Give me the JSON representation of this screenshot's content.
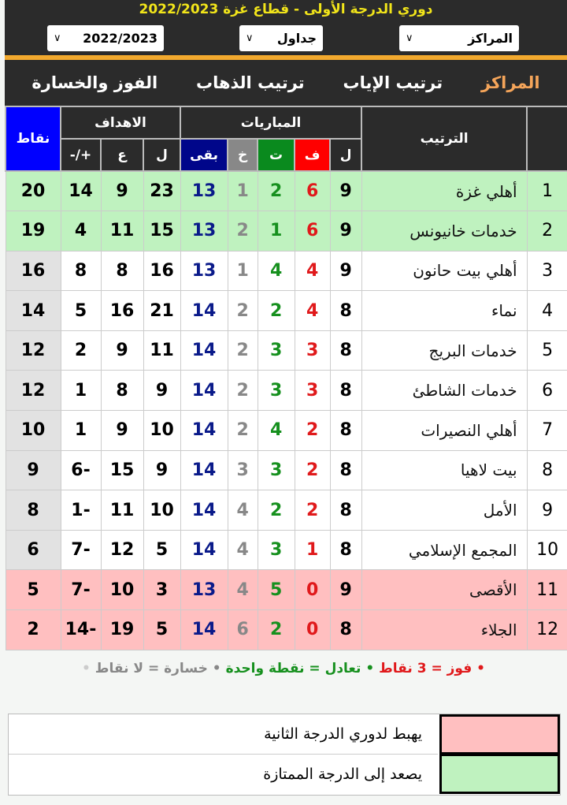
{
  "header": {
    "title": "دوري الدرجة الأولى - قطاع غزة 2022/2023",
    "selects": {
      "season": "2022/2023",
      "type": "جداول",
      "view": "المراكز"
    }
  },
  "tabs": [
    {
      "label": "المراكز",
      "active": true
    },
    {
      "label": "ترتيب الإياب"
    },
    {
      "label": "ترتيب الذهاب"
    },
    {
      "label": "الفوز والخسارة"
    }
  ],
  "table": {
    "headers": {
      "rank": "الترتيب",
      "matches": "المباريات",
      "goals": "الاهداف",
      "points": "نقاط",
      "played": "ل",
      "won": "ف",
      "drawn": "ت",
      "lost": "خ",
      "remaining": "بقى",
      "gf": "ل",
      "ga": "ع",
      "gd": "+/-"
    },
    "rows": [
      {
        "pos": "1",
        "team": "أهلي غزة",
        "p": "9",
        "w": "6",
        "d": "2",
        "l": "1",
        "r": "13",
        "gf": "23",
        "ga": "9",
        "gd": "14",
        "pts": "20",
        "zone": "up"
      },
      {
        "pos": "2",
        "team": "خدمات خانيونس",
        "p": "9",
        "w": "6",
        "d": "1",
        "l": "2",
        "r": "13",
        "gf": "15",
        "ga": "11",
        "gd": "4",
        "pts": "19",
        "zone": "up"
      },
      {
        "pos": "3",
        "team": "أهلي بيت حانون",
        "p": "9",
        "w": "4",
        "d": "4",
        "l": "1",
        "r": "13",
        "gf": "16",
        "ga": "8",
        "gd": "8",
        "pts": "16",
        "zone": "mid"
      },
      {
        "pos": "4",
        "team": "نماء",
        "p": "8",
        "w": "4",
        "d": "2",
        "l": "2",
        "r": "14",
        "gf": "21",
        "ga": "16",
        "gd": "5",
        "pts": "14",
        "zone": "mid"
      },
      {
        "pos": "5",
        "team": "خدمات البريج",
        "p": "8",
        "w": "3",
        "d": "3",
        "l": "2",
        "r": "14",
        "gf": "11",
        "ga": "9",
        "gd": "2",
        "pts": "12",
        "zone": "mid"
      },
      {
        "pos": "6",
        "team": "خدمات الشاطئ",
        "p": "8",
        "w": "3",
        "d": "3",
        "l": "2",
        "r": "14",
        "gf": "9",
        "ga": "8",
        "gd": "1",
        "pts": "12",
        "zone": "mid"
      },
      {
        "pos": "7",
        "team": "أهلي النصيرات",
        "p": "8",
        "w": "2",
        "d": "4",
        "l": "2",
        "r": "14",
        "gf": "10",
        "ga": "9",
        "gd": "1",
        "pts": "10",
        "zone": "mid"
      },
      {
        "pos": "8",
        "team": "بيت لاهيا",
        "p": "8",
        "w": "2",
        "d": "3",
        "l": "3",
        "r": "14",
        "gf": "9",
        "ga": "15",
        "gd": "-6",
        "pts": "9",
        "zone": "mid"
      },
      {
        "pos": "9",
        "team": "الأمل",
        "p": "8",
        "w": "2",
        "d": "2",
        "l": "4",
        "r": "14",
        "gf": "10",
        "ga": "11",
        "gd": "-1",
        "pts": "8",
        "zone": "mid"
      },
      {
        "pos": "10",
        "team": "المجمع الإسلامي",
        "p": "8",
        "w": "1",
        "d": "3",
        "l": "4",
        "r": "14",
        "gf": "5",
        "ga": "12",
        "gd": "-7",
        "pts": "6",
        "zone": "mid"
      },
      {
        "pos": "11",
        "team": "الأقصى",
        "p": "9",
        "w": "0",
        "d": "5",
        "l": "4",
        "r": "13",
        "gf": "3",
        "ga": "10",
        "gd": "-7",
        "pts": "5",
        "zone": "down"
      },
      {
        "pos": "12",
        "team": "الجلاء",
        "p": "8",
        "w": "0",
        "d": "2",
        "l": "6",
        "r": "14",
        "gf": "5",
        "ga": "19",
        "gd": "-14",
        "pts": "2",
        "zone": "down"
      }
    ]
  },
  "points_legend": {
    "win": "• فوز = 3 نقاط",
    "draw": "• تعادل = نقطة واحدة",
    "loss": "• خسارة = لا نقاط",
    "end": "•"
  },
  "zones": [
    {
      "label": "يهبط لدوري الدرجة الثانية",
      "color": "#ffbfc0"
    },
    {
      "label": "يصعد إلى الدرجة الممتازة",
      "color": "#bff2bf"
    }
  ],
  "colors": {
    "header": "#2b2b2b",
    "accent": "#f2a92e",
    "title": "#f2e51a",
    "won": "#e0191b",
    "drawn": "#16901e",
    "lost": "#888888",
    "remaining": "#0a1a8a",
    "points_header": "#0000ff"
  }
}
